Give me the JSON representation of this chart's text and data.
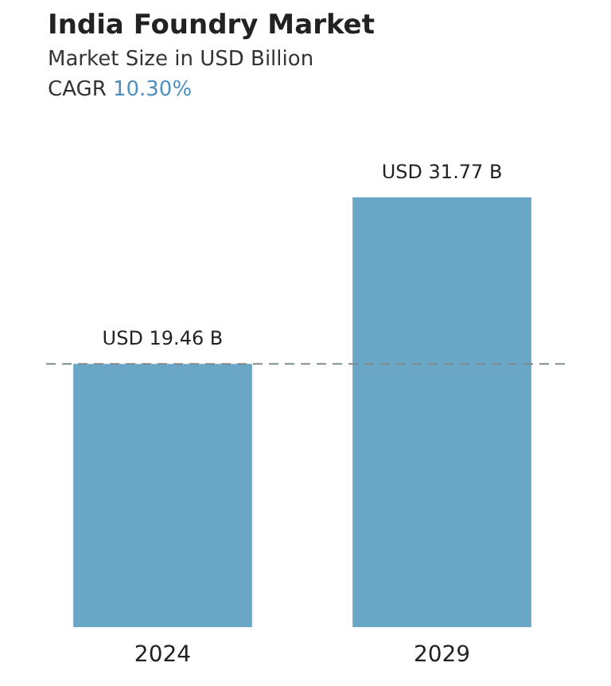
{
  "chart_data": {
    "type": "bar",
    "title": "India Foundry Market",
    "subtitle": "Market Size in USD Billion",
    "annotations": [
      "CAGR 10.30%"
    ],
    "categories": [
      "2024",
      "2029"
    ],
    "values": [
      19.46,
      31.77
    ],
    "value_labels": [
      "USD 19.46 B",
      "USD 31.77 B"
    ],
    "color": "#6aa6c6",
    "ref_lines": [
      {
        "axis": "y",
        "value": 19.46,
        "color": "#7f8c8d",
        "line_style": "dashed"
      }
    ]
  }
}
